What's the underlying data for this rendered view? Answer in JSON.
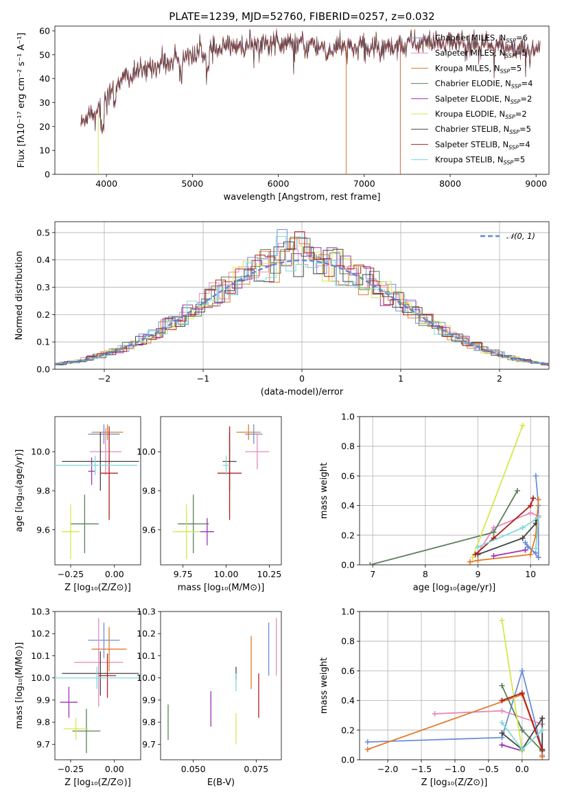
{
  "figure_title": "PLATE=1239, MJD=52760, FIBERID=0257, z=0.032",
  "colors": {
    "Chabrier MILES": "#6a8fd8",
    "Salpeter MILES": "#e88ab8",
    "Kroupa MILES": "#e07a2a",
    "Chabrier ELODIE": "#5a7f5a",
    "Salpeter ELODIE": "#9b30b0",
    "Kroupa ELODIE": "#d4e84a",
    "Chabrier STELIB": "#444444",
    "Salpeter STELIB": "#b01c1c",
    "Kroupa STELIB": "#80d8d8"
  },
  "chart_data": [
    {
      "id": "spectrum",
      "type": "line",
      "title": "PLATE=1239, MJD=52760, FIBERID=0257, z=0.032",
      "xlabel": "wavelength [Angstrom, rest frame]",
      "ylabel": "Flux [fλ10⁻¹⁷ erg cm⁻² s⁻¹ A⁻¹]",
      "xlim": [
        3400,
        9150
      ],
      "ylim": [
        0,
        62
      ],
      "xticks": [
        4000,
        5000,
        6000,
        7000,
        8000,
        9000
      ],
      "yticks": [
        0,
        10,
        20,
        30,
        40,
        50,
        60
      ],
      "legend_position": "top-right",
      "legend": [
        {
          "name": "Chabrier MILES",
          "nssp": "6"
        },
        {
          "name": "Salpeter MILES",
          "nssp": "5"
        },
        {
          "name": "Kroupa MILES",
          "nssp": "5"
        },
        {
          "name": "Chabrier ELODIE",
          "nssp": "4"
        },
        {
          "name": "Salpeter ELODIE",
          "nssp": "2"
        },
        {
          "name": "Kroupa ELODIE",
          "nssp": "2"
        },
        {
          "name": "Chabrier STELIB",
          "nssp": "5"
        },
        {
          "name": "Salpeter STELIB",
          "nssp": "4"
        },
        {
          "name": "Kroupa STELIB",
          "nssp": "5"
        }
      ],
      "continuum_x": [
        3700,
        3800,
        3900,
        4000,
        4200,
        4400,
        4600,
        4800,
        5000,
        5200,
        5400,
        5600,
        5800,
        6000,
        6200,
        6400,
        6600,
        6800,
        7000,
        7200,
        7400,
        7600,
        7800,
        8000,
        8200,
        8400,
        8600,
        8800,
        9000
      ],
      "continuum_y": [
        22,
        25,
        28,
        33,
        40,
        43,
        46,
        48,
        50,
        51,
        53,
        54,
        55,
        55,
        54,
        54,
        53,
        53,
        53,
        53,
        54,
        55,
        55,
        55,
        54,
        54,
        53,
        53,
        52
      ],
      "spectrum_range": [
        3700,
        9050
      ]
    },
    {
      "id": "residuals",
      "type": "histogram",
      "xlabel": "(data-model)/error",
      "ylabel": "Normed distribution",
      "xlim": [
        -2.5,
        2.5
      ],
      "ylim": [
        0,
        0.54
      ],
      "xticks": [
        -2,
        -1,
        0,
        1,
        2
      ],
      "yticks": [
        0,
        0.1,
        0.2,
        0.3,
        0.4,
        0.5
      ],
      "grid": true,
      "legend_position": "top-right",
      "reference_label": "𝒩(0, 1)",
      "bin_width": 0.1
    },
    {
      "id": "age-Z",
      "type": "errorbar",
      "xlabel": "Z [log₁₀(Z/Z⊙)]",
      "ylabel": "age  [log₁₀(age/yr)]",
      "xlim": [
        -0.34,
        0.15
      ],
      "ylim": [
        9.42,
        10.18
      ],
      "xticks": [
        -0.25,
        0.0
      ],
      "xtick_labels": [
        "−0.25",
        "0.00"
      ],
      "yticks": [
        9.6,
        9.8,
        10.0
      ],
      "points": [
        {
          "s": "Chabrier MILES",
          "x": -0.06,
          "y": 10.09,
          "ex": 0.09,
          "ey": 0.05
        },
        {
          "s": "Salpeter MILES",
          "x": -0.05,
          "y": 10.0,
          "ex": 0.09,
          "ey": 0.12
        },
        {
          "s": "Kroupa MILES",
          "x": -0.04,
          "y": 10.1,
          "ex": 0.09,
          "ey": 0.04
        },
        {
          "s": "Chabrier ELODIE",
          "x": -0.17,
          "y": 9.63,
          "ex": 0.08,
          "ey": 0.15
        },
        {
          "s": "Salpeter ELODIE",
          "x": -0.13,
          "y": 9.9,
          "ex": 0.02,
          "ey": 0.07
        },
        {
          "s": "Kroupa ELODIE",
          "x": -0.25,
          "y": 9.59,
          "ex": 0.05,
          "ey": 0.14
        },
        {
          "s": "Chabrier STELIB",
          "x": -0.08,
          "y": 9.95,
          "ex": 0.22,
          "ey": 0.15
        },
        {
          "s": "Salpeter STELIB",
          "x": -0.03,
          "y": 9.89,
          "ex": 0.05,
          "ey": 0.24
        },
        {
          "s": "Kroupa STELIB",
          "x": -0.11,
          "y": 9.93,
          "ex": 0.24,
          "ey": 0.05
        }
      ]
    },
    {
      "id": "age-mass",
      "type": "errorbar",
      "xlabel": "mass [log₁₀(M/M⊙)]",
      "ylabel": "",
      "xlim": [
        9.62,
        10.32
      ],
      "ylim": [
        9.42,
        10.18
      ],
      "xticks": [
        9.75,
        10.0,
        10.25
      ],
      "xtick_labels": [
        "9.75",
        "10.00",
        "10.25"
      ],
      "yticks": [
        9.6,
        9.8,
        10.0
      ],
      "points": [
        {
          "s": "Chabrier MILES",
          "x": 10.16,
          "y": 10.09,
          "ex": 0.05,
          "ey": 0.05
        },
        {
          "s": "Salpeter MILES",
          "x": 10.18,
          "y": 10.0,
          "ex": 0.07,
          "ey": 0.09
        },
        {
          "s": "Kroupa MILES",
          "x": 10.13,
          "y": 10.1,
          "ex": 0.07,
          "ey": 0.04
        },
        {
          "s": "Chabrier ELODIE",
          "x": 9.81,
          "y": 9.63,
          "ex": 0.09,
          "ey": 0.15
        },
        {
          "s": "Salpeter ELODIE",
          "x": 9.89,
          "y": 9.59,
          "ex": 0.04,
          "ey": 0.07
        },
        {
          "s": "Kroupa ELODIE",
          "x": 9.77,
          "y": 9.59,
          "ex": 0.08,
          "ey": 0.14
        },
        {
          "s": "Chabrier STELIB",
          "x": 10.02,
          "y": 9.95,
          "ex": 0.04,
          "ey": 0.15
        },
        {
          "s": "Salpeter STELIB",
          "x": 10.02,
          "y": 9.89,
          "ex": 0.07,
          "ey": 0.24
        },
        {
          "s": "Kroupa STELIB",
          "x": 10.0,
          "y": 9.93,
          "ex": 0.02,
          "ey": 0.05
        }
      ]
    },
    {
      "id": "weight-age",
      "type": "line",
      "xlabel": "age  [log₁₀(age/yr)]",
      "ylabel": "mass weight",
      "xlim": [
        6.75,
        10.35
      ],
      "ylim": [
        0,
        1.0
      ],
      "xticks": [
        7,
        8,
        9,
        10
      ],
      "yticks": [
        0,
        0.2,
        0.4,
        0.6,
        0.8,
        1.0
      ],
      "grid": true,
      "series": [
        {
          "s": "Chabrier MILES",
          "x": [
            10.1,
            10.15,
            10.15,
            9.9,
            9.95,
            10.1
          ],
          "y": [
            0.6,
            0.4,
            0.05,
            0.15,
            0.12,
            0.08
          ]
        },
        {
          "s": "Salpeter MILES",
          "x": [
            10.15,
            10.0,
            9.3,
            9.0
          ],
          "y": [
            0.33,
            0.35,
            0.25,
            0.08
          ]
        },
        {
          "s": "Kroupa MILES",
          "x": [
            10.15,
            10.1,
            10.0,
            9.0,
            8.85
          ],
          "y": [
            0.44,
            0.2,
            0.07,
            0.03,
            0.02
          ]
        },
        {
          "s": "Chabrier ELODIE",
          "x": [
            6.95,
            9.3,
            9.75
          ],
          "y": [
            0.0,
            0.22,
            0.5
          ]
        },
        {
          "s": "Salpeter ELODIE",
          "x": [
            9.3,
            9.9
          ],
          "y": [
            0.06,
            0.1
          ]
        },
        {
          "s": "Kroupa ELODIE",
          "x": [
            8.9,
            9.85
          ],
          "y": [
            0.05,
            0.94
          ]
        },
        {
          "s": "Chabrier STELIB",
          "x": [
            9.0,
            9.85,
            10.1,
            10.1
          ],
          "y": [
            0.07,
            0.18,
            0.28,
            0.3
          ]
        },
        {
          "s": "Salpeter STELIB",
          "x": [
            8.95,
            9.3,
            10.0,
            10.05
          ],
          "y": [
            0.07,
            0.18,
            0.4,
            0.45
          ]
        },
        {
          "s": "Kroupa STELIB",
          "x": [
            9.0,
            9.85,
            10.15,
            10.1
          ],
          "y": [
            0.12,
            0.25,
            0.32,
            0.11
          ]
        }
      ]
    },
    {
      "id": "mass-Z",
      "type": "errorbar",
      "xlabel": "Z [log₁₀(Z/Z⊙)]",
      "ylabel": "mass [log₁₀(M/M⊙)]",
      "xlim": [
        -0.34,
        0.15
      ],
      "ylim": [
        9.63,
        10.3
      ],
      "xticks": [
        -0.25,
        0.0
      ],
      "xtick_labels": [
        "−0.25",
        "0.00"
      ],
      "yticks": [
        9.7,
        9.8,
        9.9,
        10.0,
        10.1,
        10.2,
        10.3
      ],
      "points": [
        {
          "s": "Chabrier MILES",
          "x": -0.06,
          "y": 10.17,
          "ex": 0.09,
          "ey": 0.08
        },
        {
          "s": "Salpeter MILES",
          "x": -0.09,
          "y": 10.07,
          "ex": 0.14,
          "ey": 0.2
        },
        {
          "s": "Kroupa MILES",
          "x": -0.03,
          "y": 10.13,
          "ex": 0.1,
          "ey": 0.1
        },
        {
          "s": "Chabrier ELODIE",
          "x": -0.16,
          "y": 9.76,
          "ex": 0.08,
          "ey": 0.1
        },
        {
          "s": "Salpeter ELODIE",
          "x": -0.26,
          "y": 9.89,
          "ex": 0.05,
          "ey": 0.07
        },
        {
          "s": "Kroupa ELODIE",
          "x": -0.22,
          "y": 9.77,
          "ex": 0.07,
          "ey": 0.05
        },
        {
          "s": "Chabrier STELIB",
          "x": -0.08,
          "y": 10.02,
          "ex": 0.22,
          "ey": 0.1
        },
        {
          "s": "Salpeter STELIB",
          "x": -0.04,
          "y": 10.01,
          "ex": 0.05,
          "ey": 0.1
        },
        {
          "s": "Kroupa STELIB",
          "x": -0.1,
          "y": 10.0,
          "ex": 0.25,
          "ey": 0.05
        }
      ]
    },
    {
      "id": "mass-ebv",
      "type": "errorbar",
      "xlabel": "E(B-V)",
      "ylabel": "",
      "xlim": [
        0.037,
        0.085
      ],
      "ylim": [
        9.63,
        10.3
      ],
      "xticks": [
        0.05,
        0.075
      ],
      "xtick_labels": [
        "0.050",
        "0.075"
      ],
      "yticks": [
        9.7,
        9.8,
        9.9,
        10.0,
        10.1,
        10.2,
        10.3
      ],
      "points": [
        {
          "s": "Chabrier MILES",
          "x": 0.08,
          "y": 10.13,
          "ex": 0.0,
          "ey": 0.12
        },
        {
          "s": "Salpeter MILES",
          "x": 0.083,
          "y": 10.14,
          "ex": 0.0,
          "ey": 0.13
        },
        {
          "s": "Kroupa MILES",
          "x": 0.073,
          "y": 10.07,
          "ex": 0.0,
          "ey": 0.12
        },
        {
          "s": "Chabrier ELODIE",
          "x": 0.04,
          "y": 9.8,
          "ex": 0.0,
          "ey": 0.08
        },
        {
          "s": "Salpeter ELODIE",
          "x": 0.057,
          "y": 9.86,
          "ex": 0.0,
          "ey": 0.08
        },
        {
          "s": "Kroupa ELODIE",
          "x": 0.067,
          "y": 9.77,
          "ex": 0.0,
          "ey": 0.07
        },
        {
          "s": "Chabrier STELIB",
          "x": 0.067,
          "y": 10.02,
          "ex": 0.0,
          "ey": 0.03
        },
        {
          "s": "Salpeter STELIB",
          "x": 0.076,
          "y": 9.92,
          "ex": 0.0,
          "ey": 0.1
        },
        {
          "s": "Kroupa STELIB",
          "x": 0.067,
          "y": 9.98,
          "ex": 0.0,
          "ey": 0.04
        }
      ]
    },
    {
      "id": "weight-Z",
      "type": "line",
      "xlabel": "Z [log₁₀(Z/Z⊙)]",
      "ylabel": "mass weight",
      "xlim": [
        -2.42,
        0.4
      ],
      "ylim": [
        0,
        1.0
      ],
      "xticks": [
        -2.0,
        -1.5,
        -1.0,
        -0.5,
        0.0
      ],
      "xtick_labels": [
        "−2.0",
        "−1.5",
        "−1.0",
        "−0.5",
        "0.0"
      ],
      "yticks": [
        0,
        0.2,
        0.4,
        0.6,
        0.8,
        1.0
      ],
      "grid": true,
      "series": [
        {
          "s": "Chabrier MILES",
          "x": [
            -2.3,
            -0.3,
            0.0,
            0.3,
            0.3
          ],
          "y": [
            0.12,
            0.15,
            0.6,
            0.06,
            0.03
          ]
        },
        {
          "s": "Salpeter MILES",
          "x": [
            -1.3,
            -0.3,
            0.3,
            0.3
          ],
          "y": [
            0.31,
            0.33,
            0.24,
            0.03
          ]
        },
        {
          "s": "Kroupa MILES",
          "x": [
            -2.3,
            0.0,
            0.3,
            0.3
          ],
          "y": [
            0.07,
            0.44,
            0.06,
            0.02
          ]
        },
        {
          "s": "Chabrier ELODIE",
          "x": [
            -0.3,
            0.0,
            0.3
          ],
          "y": [
            0.5,
            0.2,
            0.06
          ]
        },
        {
          "s": "Salpeter ELODIE",
          "x": [
            -0.3,
            0.0
          ],
          "y": [
            0.1,
            0.06
          ]
        },
        {
          "s": "Kroupa ELODIE",
          "x": [
            -0.3,
            0.0
          ],
          "y": [
            0.94,
            0.06
          ]
        },
        {
          "s": "Chabrier STELIB",
          "x": [
            -0.3,
            0.0,
            0.3,
            0.3
          ],
          "y": [
            0.18,
            0.07,
            0.28,
            0.07
          ]
        },
        {
          "s": "Salpeter STELIB",
          "x": [
            -0.3,
            0.0,
            0.3
          ],
          "y": [
            0.4,
            0.45,
            0.07
          ]
        },
        {
          "s": "Kroupa STELIB",
          "x": [
            -0.3,
            0.0,
            0.3
          ],
          "y": [
            0.25,
            0.07,
            0.2
          ]
        }
      ]
    }
  ]
}
